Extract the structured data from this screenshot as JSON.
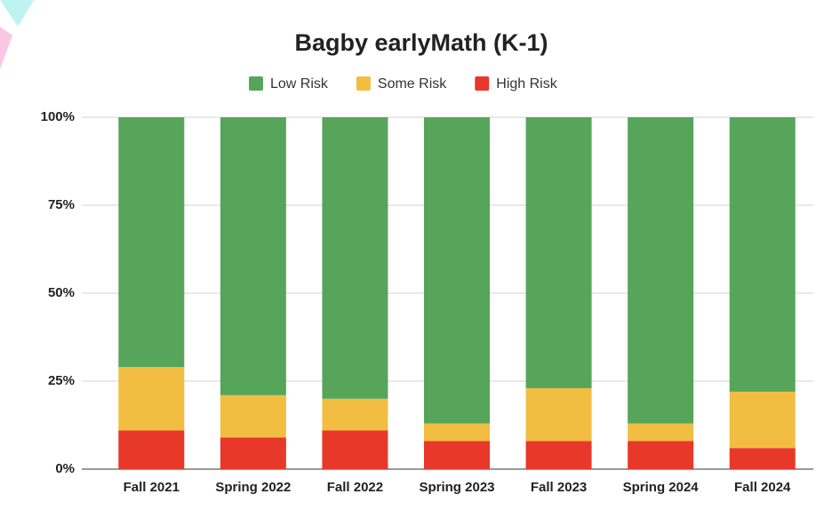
{
  "chart_data": {
    "type": "stacked_bar",
    "title": "Bagby earlyMath (K-1)",
    "categories": [
      "Fall 2021",
      "Spring 2022",
      "Fall 2022",
      "Spring 2023",
      "Fall 2023",
      "Spring 2024",
      "Fall 2024"
    ],
    "series": [
      {
        "name": "Low Risk",
        "color": "#57a55a",
        "values": [
          71,
          79,
          80,
          87,
          77,
          87,
          78
        ]
      },
      {
        "name": "Some Risk",
        "color": "#f1be42",
        "values": [
          18,
          12,
          9,
          5,
          15,
          5,
          16
        ]
      },
      {
        "name": "High Risk",
        "color": "#e8382a",
        "values": [
          11,
          9,
          11,
          8,
          8,
          8,
          6
        ]
      }
    ],
    "ylim": [
      0,
      100
    ],
    "yticks": [
      {
        "value": 0,
        "label": "0%"
      },
      {
        "value": 25,
        "label": "25%"
      },
      {
        "value": 50,
        "label": "50%"
      },
      {
        "value": 75,
        "label": "75%"
      },
      {
        "value": 100,
        "label": "100%"
      }
    ],
    "grid": true,
    "legend": "top"
  }
}
